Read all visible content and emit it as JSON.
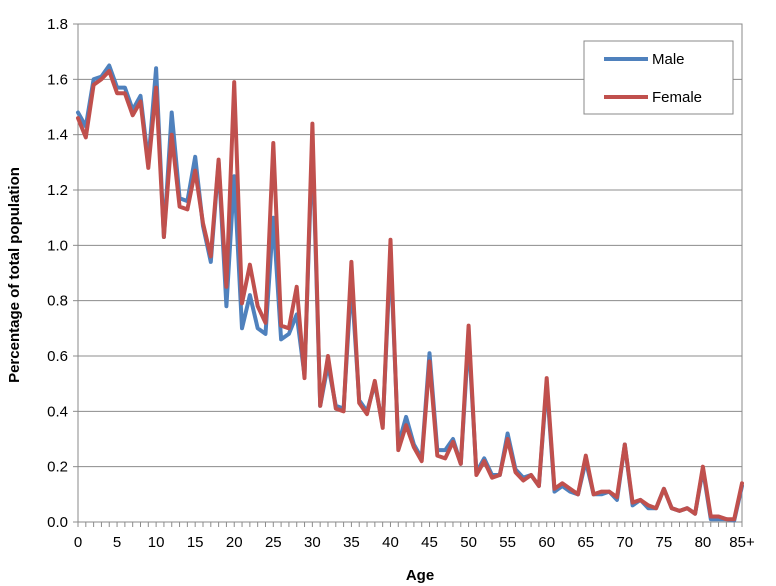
{
  "chart_data": {
    "type": "line",
    "title": "",
    "xlabel": "Age",
    "ylabel": "Percentage of total population",
    "xlim": [
      0,
      85
    ],
    "ylim": [
      0,
      1.8
    ],
    "x_tick_labels": [
      "0",
      "5",
      "10",
      "15",
      "20",
      "25",
      "30",
      "35",
      "40",
      "45",
      "50",
      "55",
      "60",
      "65",
      "70",
      "75",
      "80",
      "85+"
    ],
    "y_tick_labels": [
      "0.0",
      "0.2",
      "0.4",
      "0.6",
      "0.8",
      "1.0",
      "1.2",
      "1.4",
      "1.6",
      "1.8"
    ],
    "grid": "horizontal",
    "legend_position": "top-right",
    "x": [
      0,
      1,
      2,
      3,
      4,
      5,
      6,
      7,
      8,
      9,
      10,
      11,
      12,
      13,
      14,
      15,
      16,
      17,
      18,
      19,
      20,
      21,
      22,
      23,
      24,
      25,
      26,
      27,
      28,
      29,
      30,
      31,
      32,
      33,
      34,
      35,
      36,
      37,
      38,
      39,
      40,
      41,
      42,
      43,
      44,
      45,
      46,
      47,
      48,
      49,
      50,
      51,
      52,
      53,
      54,
      55,
      56,
      57,
      58,
      59,
      60,
      61,
      62,
      63,
      64,
      65,
      66,
      67,
      68,
      69,
      70,
      71,
      72,
      73,
      74,
      75,
      76,
      77,
      78,
      79,
      80,
      81,
      82,
      83,
      84,
      85
    ],
    "series": [
      {
        "name": "Male",
        "color": "#4F81BD",
        "values": [
          1.48,
          1.43,
          1.6,
          1.61,
          1.65,
          1.57,
          1.57,
          1.49,
          1.54,
          1.3,
          1.64,
          1.03,
          1.48,
          1.17,
          1.16,
          1.32,
          1.07,
          0.94,
          1.3,
          0.78,
          1.25,
          0.7,
          0.82,
          0.7,
          0.68,
          1.1,
          0.66,
          0.68,
          0.75,
          0.53,
          1.38,
          0.42,
          0.57,
          0.42,
          0.41,
          0.87,
          0.44,
          0.4,
          0.5,
          0.35,
          0.97,
          0.28,
          0.38,
          0.28,
          0.23,
          0.61,
          0.26,
          0.26,
          0.3,
          0.21,
          0.67,
          0.18,
          0.23,
          0.17,
          0.17,
          0.32,
          0.19,
          0.16,
          0.17,
          0.13,
          0.5,
          0.11,
          0.13,
          0.11,
          0.1,
          0.22,
          0.1,
          0.1,
          0.11,
          0.08,
          0.28,
          0.06,
          0.08,
          0.05,
          0.05,
          0.12,
          0.05,
          0.04,
          0.05,
          0.03,
          0.19,
          0.01,
          0.01,
          0.01,
          0.005,
          0.13
        ]
      },
      {
        "name": "Female",
        "color": "#C0504D",
        "values": [
          1.46,
          1.39,
          1.58,
          1.6,
          1.63,
          1.55,
          1.55,
          1.47,
          1.52,
          1.28,
          1.57,
          1.03,
          1.4,
          1.14,
          1.13,
          1.27,
          1.08,
          0.96,
          1.31,
          0.85,
          1.59,
          0.79,
          0.93,
          0.78,
          0.72,
          1.37,
          0.71,
          0.7,
          0.85,
          0.52,
          1.44,
          0.42,
          0.6,
          0.41,
          0.4,
          0.94,
          0.43,
          0.39,
          0.51,
          0.34,
          1.02,
          0.26,
          0.35,
          0.27,
          0.22,
          0.58,
          0.24,
          0.23,
          0.29,
          0.21,
          0.71,
          0.17,
          0.22,
          0.16,
          0.17,
          0.3,
          0.18,
          0.15,
          0.17,
          0.13,
          0.52,
          0.12,
          0.14,
          0.12,
          0.1,
          0.24,
          0.1,
          0.11,
          0.11,
          0.09,
          0.28,
          0.07,
          0.08,
          0.06,
          0.05,
          0.12,
          0.05,
          0.04,
          0.05,
          0.03,
          0.2,
          0.02,
          0.02,
          0.01,
          0.01,
          0.14
        ]
      }
    ]
  }
}
